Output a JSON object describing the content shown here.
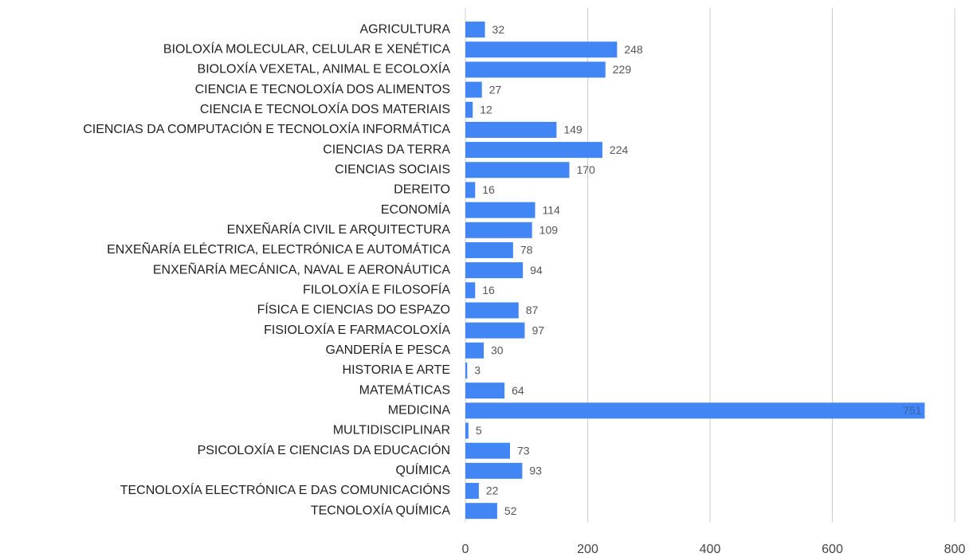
{
  "chart_data": {
    "type": "hbar",
    "categories": [
      "AGRICULTURA",
      "BIOLOXÍA MOLECULAR, CELULAR E XENÉTICA",
      "BIOLOXÍA VEXETAL, ANIMAL E ECOLOXÍA",
      "CIENCIA E TECNOLOXÍA DOS ALIMENTOS",
      "CIENCIA E TECNOLOXÍA DOS MATERIAIS",
      "CIENCIAS DA COMPUTACIÓN E TECNOLOXÍA INFORMÁTICA",
      "CIENCIAS DA TERRA",
      "CIENCIAS SOCIAIS",
      "DEREITO",
      "ECONOMÍA",
      "ENXEÑARÍA CIVIL E ARQUITECTURA",
      "ENXEÑARÍA ELÉCTRICA, ELECTRÓNICA E AUTOMÁTICA",
      "ENXEÑARÍA MECÁNICA, NAVAL E AERONÁUTICA",
      "FILOLOXÍA E FILOSOFÍA",
      "FÍSICA E CIENCIAS DO ESPAZO",
      "FISIOLOXÍA E FARMACOLOXÍA",
      "GANDERÍA E PESCA",
      "HISTORIA E ARTE",
      "MATEMÁTICAS",
      "MEDICINA",
      "MULTIDISCIPLINAR",
      "PSICOLOXÍA E CIENCIAS DA EDUCACIÓN",
      "QUÍMICA",
      "TECNOLOXÍA ELECTRÓNICA E DAS COMUNICACIÓNS",
      "TECNOLOXÍA QUÍMICA"
    ],
    "values": [
      32,
      248,
      229,
      27,
      12,
      149,
      224,
      170,
      16,
      114,
      109,
      78,
      94,
      16,
      87,
      97,
      30,
      3,
      64,
      751,
      5,
      73,
      93,
      22,
      52
    ],
    "color": "#4285f4",
    "xlim": [
      0,
      800
    ],
    "xticks": [
      0,
      200,
      400,
      600,
      800
    ],
    "grid": true
  }
}
